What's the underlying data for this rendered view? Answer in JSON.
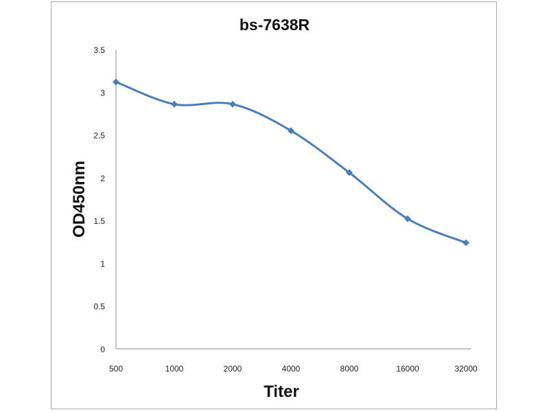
{
  "chart_data": {
    "type": "line",
    "title": "bs-7638R",
    "xlabel": "Titer",
    "ylabel": "OD450nm",
    "categories": [
      "500",
      "1000",
      "2000",
      "4000",
      "8000",
      "16000",
      "32000"
    ],
    "series": [
      {
        "name": "bs-7638R",
        "values": [
          3.12,
          2.86,
          2.86,
          2.55,
          2.06,
          1.52,
          1.24
        ],
        "color": "#4a7ebb"
      }
    ],
    "ylim": [
      0,
      3.5
    ],
    "yticks": [
      "0",
      "0.5",
      "1",
      "1.5",
      "2",
      "2.5",
      "3",
      "3.5"
    ],
    "grid": false,
    "legend": "none"
  }
}
